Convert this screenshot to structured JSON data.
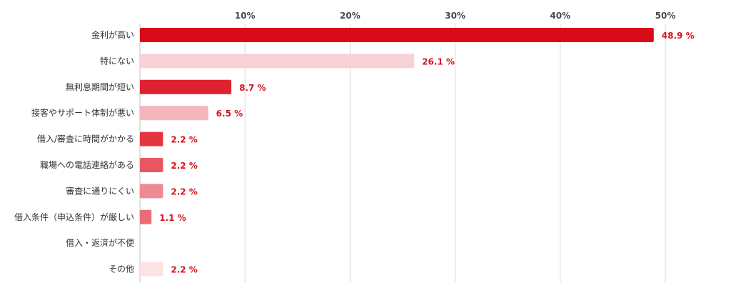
{
  "chart_data": {
    "type": "bar",
    "orientation": "horizontal",
    "title": "",
    "xlabel": "",
    "ylabel": "",
    "xlim": [
      0,
      53.5
    ],
    "x_ticks": [
      10,
      20,
      30,
      40,
      50
    ],
    "x_tick_labels": [
      "10%",
      "20%",
      "30%",
      "40%",
      "50%"
    ],
    "grid": true,
    "legend": "none",
    "categories": [
      "金利が高い",
      "特にない",
      "無利息期間が短い",
      "接客やサポート体制が悪い",
      "借入/審査に時間がかかる",
      "職場への電話連絡がある",
      "審査に通りにくい",
      "借入条件（申込条件）が厳しい",
      "借入・返済が不便",
      "その他"
    ],
    "values": [
      48.9,
      26.1,
      8.7,
      6.5,
      2.2,
      2.2,
      2.2,
      1.1,
      0,
      2.2
    ],
    "value_labels": [
      "48.9 %",
      "26.1 %",
      "8.7 %",
      "6.5 %",
      "2.2 %",
      "2.2 %",
      "2.2 %",
      "1.1 %",
      "",
      "2.2 %"
    ],
    "bar_colors": [
      "#d80c18",
      "#f7d1d5",
      "#df2230",
      "#f2b6bb",
      "#e23540",
      "#e75661",
      "#ee8a93",
      "#eb6c75",
      "#f3c4c8",
      "#fbe3e5"
    ],
    "value_label_color": "#d7141e"
  }
}
